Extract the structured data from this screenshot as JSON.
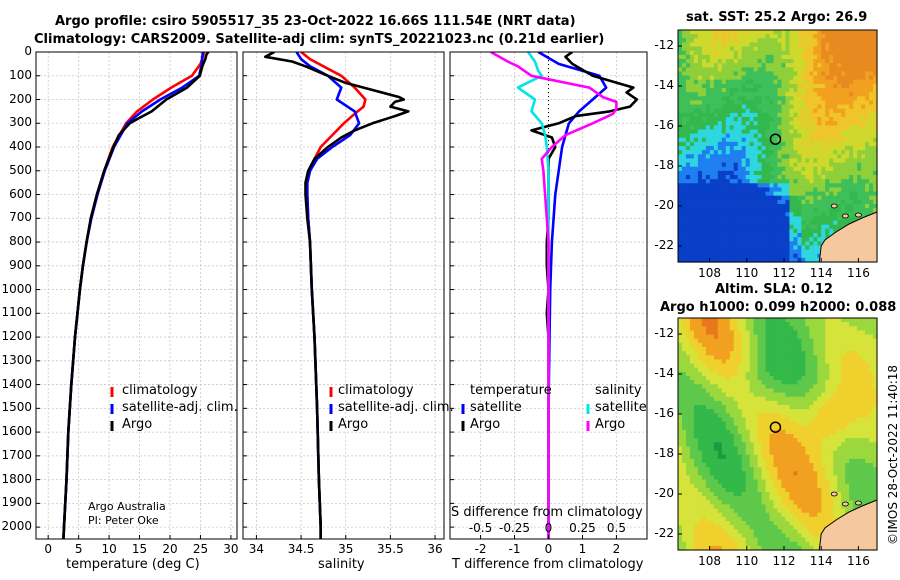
{
  "header": {
    "title_line1": "Argo profile: csiro 5905517_35 23-Oct-2022 16.66S 111.54E (NRT data)",
    "title_line2": "Climatology: CARS2009. Satellite-adj clim: synTS_20221023.nc (0.21d earlier)"
  },
  "credits": {
    "line1": "Argo Australia",
    "line2": "PI: Peter Oke"
  },
  "imos_stamp": "©IMOS 28-Oct-2022 11:40:18",
  "colors": {
    "climatology": "#ff0000",
    "satellite": "#0000ff",
    "argo": "#000000",
    "sat_salinity": "#00e5e5",
    "argo_salinity": "#ff00ff"
  },
  "chart_data": [
    {
      "type": "line",
      "name": "temperature-profile",
      "xlabel": "temperature (deg C)",
      "ylabel": "",
      "xlim": [
        -2,
        31
      ],
      "ylim": [
        2050,
        0
      ],
      "xticks": [
        0,
        5,
        10,
        15,
        20,
        25,
        30
      ],
      "yticks": [
        0,
        100,
        200,
        300,
        400,
        500,
        600,
        700,
        800,
        900,
        1000,
        1100,
        1200,
        1300,
        1400,
        1500,
        1600,
        1700,
        1800,
        1900,
        2000
      ],
      "legend": [
        "climatology",
        "satellite-adj. clim.",
        "Argo"
      ],
      "series": [
        {
          "name": "climatology",
          "color": "#ff0000",
          "depth": [
            0,
            20,
            50,
            100,
            150,
            200,
            250,
            300,
            400,
            500,
            600,
            700,
            800,
            900,
            1000,
            1200,
            1400,
            1600,
            1800,
            2000,
            2050
          ],
          "values": [
            25.6,
            25.4,
            25.0,
            23.6,
            20.2,
            17.2,
            14.6,
            12.8,
            10.6,
            9.2,
            8.0,
            7.0,
            6.3,
            5.7,
            5.2,
            4.4,
            3.8,
            3.3,
            3.0,
            2.6,
            2.5
          ]
        },
        {
          "name": "satellite-adj. clim.",
          "color": "#0000ff",
          "depth": [
            0,
            20,
            50,
            100,
            150,
            200,
            250,
            300,
            400,
            500,
            600,
            700,
            800,
            900,
            1000,
            1200,
            1400,
            1600,
            1800,
            2000,
            2050
          ],
          "values": [
            25.4,
            25.3,
            25.2,
            24.8,
            22.0,
            18.4,
            15.4,
            13.0,
            10.8,
            9.3,
            8.1,
            7.1,
            6.3,
            5.7,
            5.2,
            4.4,
            3.8,
            3.3,
            3.0,
            2.6,
            2.5
          ]
        },
        {
          "name": "Argo",
          "color": "#000000",
          "depth": [
            0,
            10,
            30,
            60,
            100,
            150,
            200,
            250,
            280,
            300,
            350,
            400,
            500,
            600,
            700,
            800,
            900,
            1000,
            1200,
            1400,
            1600,
            1800,
            2000,
            2050
          ],
          "values": [
            26.3,
            26.0,
            25.8,
            25.3,
            24.9,
            22.8,
            19.4,
            17.0,
            14.8,
            13.4,
            11.6,
            10.7,
            9.2,
            8.0,
            7.0,
            6.3,
            5.7,
            5.2,
            4.4,
            3.8,
            3.3,
            3.0,
            2.6,
            2.5
          ]
        }
      ]
    },
    {
      "type": "line",
      "name": "salinity-profile",
      "xlabel": "salinity",
      "xlim": [
        33.85,
        36.1
      ],
      "ylim": [
        2050,
        0
      ],
      "xticks": [
        34,
        34.5,
        35,
        35.5,
        36
      ],
      "legend": [
        "climatology",
        "satellite-adj. clim.",
        "Argo"
      ],
      "series": [
        {
          "name": "climatology",
          "color": "#ff0000",
          "depth": [
            0,
            30,
            60,
            100,
            150,
            200,
            230,
            260,
            300,
            350,
            400,
            450,
            500,
            550,
            600,
            700,
            800,
            1000,
            1200,
            1500,
            1800,
            2000,
            2050
          ],
          "values": [
            34.5,
            34.6,
            34.75,
            34.95,
            35.1,
            35.22,
            35.2,
            35.1,
            34.98,
            34.85,
            34.72,
            34.65,
            34.6,
            34.57,
            34.57,
            34.58,
            34.6,
            34.62,
            34.65,
            34.68,
            34.7,
            34.72,
            34.72
          ]
        },
        {
          "name": "satellite-adj. clim.",
          "color": "#0000ff",
          "depth": [
            0,
            30,
            60,
            100,
            150,
            200,
            250,
            300,
            350,
            400,
            450,
            500,
            550,
            600,
            700,
            800,
            1000,
            1200,
            1500,
            1800,
            2000,
            2050
          ],
          "values": [
            34.45,
            34.5,
            34.6,
            34.8,
            34.95,
            34.9,
            35.1,
            35.15,
            35.05,
            34.85,
            34.68,
            34.6,
            34.57,
            34.57,
            34.58,
            34.6,
            34.62,
            34.65,
            34.68,
            34.7,
            34.72,
            34.72
          ]
        },
        {
          "name": "Argo",
          "color": "#000000",
          "depth": [
            0,
            20,
            40,
            60,
            100,
            130,
            160,
            190,
            200,
            210,
            230,
            250,
            270,
            300,
            330,
            360,
            400,
            450,
            500,
            550,
            600,
            700,
            800,
            1000,
            1200,
            1500,
            1800,
            2000,
            2050
          ],
          "values": [
            34.2,
            34.1,
            34.4,
            34.55,
            34.8,
            35.0,
            35.3,
            35.6,
            35.65,
            35.55,
            35.5,
            35.7,
            35.55,
            35.3,
            35.1,
            34.95,
            34.8,
            34.65,
            34.58,
            34.55,
            34.55,
            34.57,
            34.6,
            34.62,
            34.65,
            34.68,
            34.7,
            34.72,
            34.72
          ]
        }
      ]
    },
    {
      "type": "line",
      "name": "difference-profile",
      "xlabel": "T difference from climatology",
      "xlabel_top": "S difference from climatology",
      "xlim": [
        -2.9,
        2.9
      ],
      "ylim": [
        2050,
        0
      ],
      "xticks": [
        -2,
        -1,
        0,
        1,
        2
      ],
      "top_ticks": [
        "-0.5",
        "-0.25",
        "0",
        "0.25",
        "0.5"
      ],
      "legend_groups": [
        {
          "title": "temperature",
          "items": [
            "satellite",
            "Argo"
          ]
        },
        {
          "title": "salinity",
          "items": [
            "satellite",
            "Argo"
          ]
        }
      ],
      "series": [
        {
          "name": "temperature satellite",
          "color": "#0000ff",
          "depth": [
            0,
            50,
            100,
            150,
            200,
            250,
            300,
            350,
            400,
            500,
            600,
            800,
            1000,
            1500,
            2000,
            2050
          ],
          "values": [
            -0.3,
            0.3,
            1.5,
            1.7,
            1.3,
            0.9,
            0.6,
            0.5,
            0.4,
            0.3,
            0.2,
            0.1,
            0.05,
            0.0,
            0.0,
            0.0
          ]
        },
        {
          "name": "temperature Argo",
          "color": "#000000",
          "depth": [
            0,
            20,
            50,
            100,
            150,
            170,
            200,
            230,
            250,
            270,
            300,
            330,
            360,
            400,
            450,
            500,
            600,
            700,
            800,
            900,
            1000,
            1100,
            1200,
            1400,
            1600,
            1800,
            2000,
            2050
          ],
          "values": [
            0.7,
            0.5,
            0.7,
            1.3,
            2.5,
            2.3,
            2.6,
            2.4,
            1.8,
            0.8,
            0.3,
            -0.5,
            0.1,
            0.2,
            0.0,
            0.0,
            0.0,
            0.0,
            -0.05,
            -0.05,
            0.0,
            -0.05,
            0.0,
            0.0,
            0.0,
            0.0,
            0.0,
            0.0
          ]
        },
        {
          "name": "salinity satellite",
          "color": "#00e5e5",
          "depth": [
            0,
            40,
            80,
            100,
            150,
            200,
            250,
            300,
            350,
            400,
            500,
            600,
            800,
            1000,
            1500,
            2000,
            2050
          ],
          "values": [
            -0.6,
            -0.4,
            -0.3,
            -0.2,
            -0.9,
            -0.4,
            -0.5,
            -0.2,
            -0.1,
            -0.05,
            0.0,
            0.0,
            0.0,
            0.0,
            0.0,
            0.0,
            0.0
          ]
        },
        {
          "name": "salinity Argo",
          "color": "#ff00ff",
          "depth": [
            0,
            40,
            60,
            100,
            150,
            190,
            210,
            240,
            260,
            300,
            350,
            400,
            450,
            500,
            600,
            700,
            800,
            900,
            1000,
            1200,
            1500,
            1800,
            2000,
            2050
          ],
          "values": [
            -1.7,
            -1.2,
            -0.9,
            -0.5,
            1.2,
            1.6,
            2.0,
            2.0,
            1.9,
            1.3,
            0.5,
            0.1,
            -0.2,
            -0.15,
            -0.1,
            -0.05,
            0.0,
            0.0,
            0.0,
            0.0,
            0.0,
            0.0,
            0.0,
            0.0
          ]
        }
      ]
    },
    {
      "type": "heatmap",
      "name": "sst-map",
      "title": "sat. SST: 25.2 Argo: 26.9",
      "xticks": [
        108,
        110,
        112,
        114,
        116
      ],
      "yticks": [
        -12,
        -14,
        -16,
        -18,
        -20,
        -22
      ],
      "xlim": [
        106.3,
        117
      ],
      "ylim": [
        -22.8,
        -11.2
      ],
      "float_position": {
        "lon": 111.54,
        "lat": -16.66
      }
    },
    {
      "type": "heatmap",
      "name": "sla-map",
      "title": "Altim. SLA: 0.12",
      "subtitle": "Argo h1000: 0.099 h2000: 0.088",
      "xticks": [
        108,
        110,
        112,
        114,
        116
      ],
      "yticks": [
        -12,
        -14,
        -16,
        -18,
        -20,
        -22
      ],
      "xlim": [
        106.3,
        117
      ],
      "ylim": [
        -22.8,
        -11.2
      ],
      "float_position": {
        "lon": 111.54,
        "lat": -16.66
      }
    }
  ]
}
